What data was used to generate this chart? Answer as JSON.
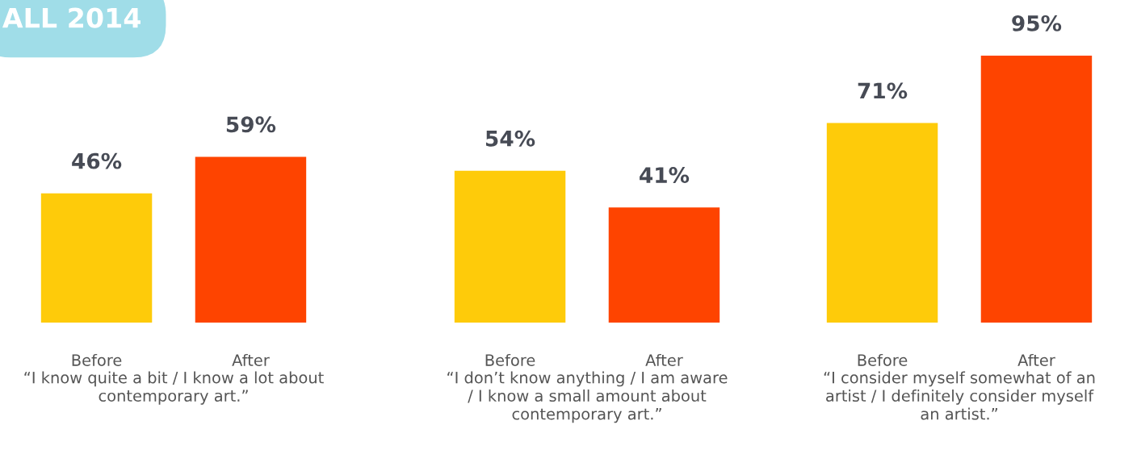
{
  "chart_data": [
    {
      "type": "bar",
      "title": "ALL 2014",
      "categories": [
        "Before",
        "After"
      ],
      "values": [
        46,
        59
      ],
      "colors": [
        "#fecb0a",
        "#fe4400"
      ],
      "xlabel": "“I know quite a bit / I know a lot about\ncontemporary art.”",
      "data_labels": true,
      "value_labels": [
        "46%",
        "59%"
      ],
      "tick_labels": "x"
    },
    {
      "type": "bar",
      "categories": [
        "Before",
        "After"
      ],
      "values": [
        54,
        41
      ],
      "colors": [
        "#fecb0a",
        "#fe4400"
      ],
      "xlabel": "“I don’t know anything / I am aware\n/ I know a small amount about\ncontemporary art.”",
      "data_labels": true,
      "value_labels": [
        "54%",
        "41%"
      ],
      "tick_labels": "x"
    },
    {
      "type": "bar",
      "categories": [
        "Before",
        "After"
      ],
      "values": [
        71,
        95
      ],
      "colors": [
        "#fecb0a",
        "#fe4400"
      ],
      "xlabel": "“I consider myself somewhat of an\nartist / I definitely consider myself\nan artist.”",
      "data_labels": true,
      "value_labels": [
        "71%",
        "95%"
      ],
      "tick_labels": "x"
    }
  ]
}
